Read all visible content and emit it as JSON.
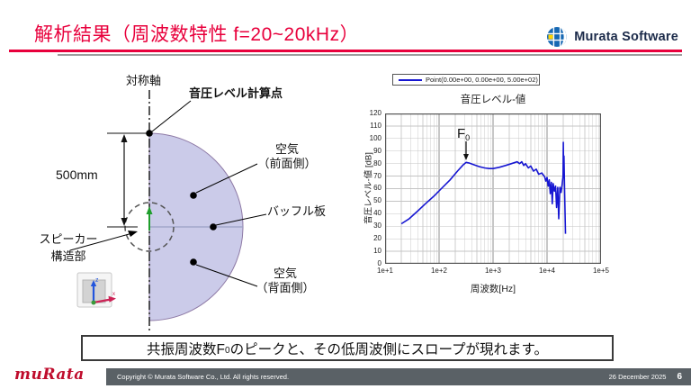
{
  "slide": {
    "title": "解析結果（周波数特性 f=20~20kHz）",
    "brand": {
      "logo_text": "Murata Software"
    },
    "message": {
      "pre": "共振周波数F",
      "sub": "0",
      "post": "のピークと、その低周波側にスロープが現れます。"
    },
    "footer": {
      "brand": "muRata",
      "copyright": "Copyright © Murata Software Co., Ltd. All rights reserved.",
      "date": "26 December 2025",
      "page": "6"
    }
  },
  "diagram": {
    "symmetry_axis_label": "対称軸",
    "calc_point_label": "音圧レベル計算点",
    "air_front": {
      "line1": "空気",
      "line2": "（前面側）"
    },
    "baffle_label": "バッフル板",
    "air_back": {
      "line1": "空気",
      "line2": "（背面側）"
    },
    "speaker": {
      "line1": "スピーカー",
      "line2": "構造部"
    },
    "dimension_label": "500mm",
    "triad": {
      "z": "z",
      "x": "x"
    }
  },
  "chart_data": {
    "type": "line",
    "title": "音圧レベル-値",
    "legend": "Point(0.00e+00, 0.00e+00, 5.00e+02)",
    "legend_position": "top",
    "xlabel": "周波数[Hz]",
    "ylabel": "音圧レベル-値 [dB]",
    "xscale": "log",
    "xlim": [
      10,
      100000
    ],
    "ylim": [
      0,
      120
    ],
    "grid": true,
    "xtick_labels": [
      "1e+1",
      "1e+2",
      "1e+3",
      "1e+4",
      "1e+5"
    ],
    "ytick_labels": [
      120,
      110,
      100,
      90,
      80,
      70,
      60,
      50,
      40,
      30,
      20,
      10,
      0
    ],
    "line_color": "#1616d2",
    "annotation": {
      "label": "F",
      "sub": "0",
      "peak_hz": 316
    },
    "series": [
      {
        "name": "Point(0.00e+00, 0.00e+00, 5.00e+02)",
        "points": [
          [
            20,
            32
          ],
          [
            28,
            36
          ],
          [
            40,
            42
          ],
          [
            56,
            48
          ],
          [
            80,
            54
          ],
          [
            110,
            60
          ],
          [
            160,
            67
          ],
          [
            220,
            74
          ],
          [
            280,
            79
          ],
          [
            316,
            81
          ],
          [
            360,
            80.5
          ],
          [
            450,
            79
          ],
          [
            560,
            77.5
          ],
          [
            700,
            76.5
          ],
          [
            850,
            76
          ],
          [
            1000,
            76
          ],
          [
            1300,
            77
          ],
          [
            1700,
            78.5
          ],
          [
            2200,
            80
          ],
          [
            2800,
            81.5
          ],
          [
            3100,
            80
          ],
          [
            3400,
            81.5
          ],
          [
            3700,
            78.5
          ],
          [
            4000,
            80
          ],
          [
            4500,
            76.5
          ],
          [
            5000,
            78
          ],
          [
            5600,
            74
          ],
          [
            6300,
            75.5
          ],
          [
            7000,
            71.5
          ],
          [
            8000,
            72.5
          ],
          [
            9000,
            69.5
          ],
          [
            9500,
            66
          ],
          [
            10000,
            69
          ],
          [
            10500,
            62
          ],
          [
            11000,
            67
          ],
          [
            11500,
            56
          ],
          [
            12000,
            65
          ],
          [
            12500,
            48
          ],
          [
            13000,
            64
          ],
          [
            13700,
            58
          ],
          [
            14400,
            62
          ],
          [
            15000,
            45
          ],
          [
            15800,
            61
          ],
          [
            16500,
            36
          ],
          [
            17300,
            61
          ],
          [
            18200,
            57
          ],
          [
            19000,
            63
          ],
          [
            19800,
            70
          ],
          [
            20000,
            97
          ],
          [
            20300,
            72
          ],
          [
            20600,
            86
          ],
          [
            21200,
            55
          ],
          [
            22000,
            24
          ]
        ]
      }
    ]
  },
  "colors": {
    "title_red": "#e8003c",
    "murata_red": "#bf0c2c",
    "logo_navy": "#1c2b4a",
    "footer_gray": "#5a6166",
    "region_fill": "#cbcbe9",
    "region_stroke": "#8e7aa6",
    "curve_blue": "#1616d2"
  }
}
